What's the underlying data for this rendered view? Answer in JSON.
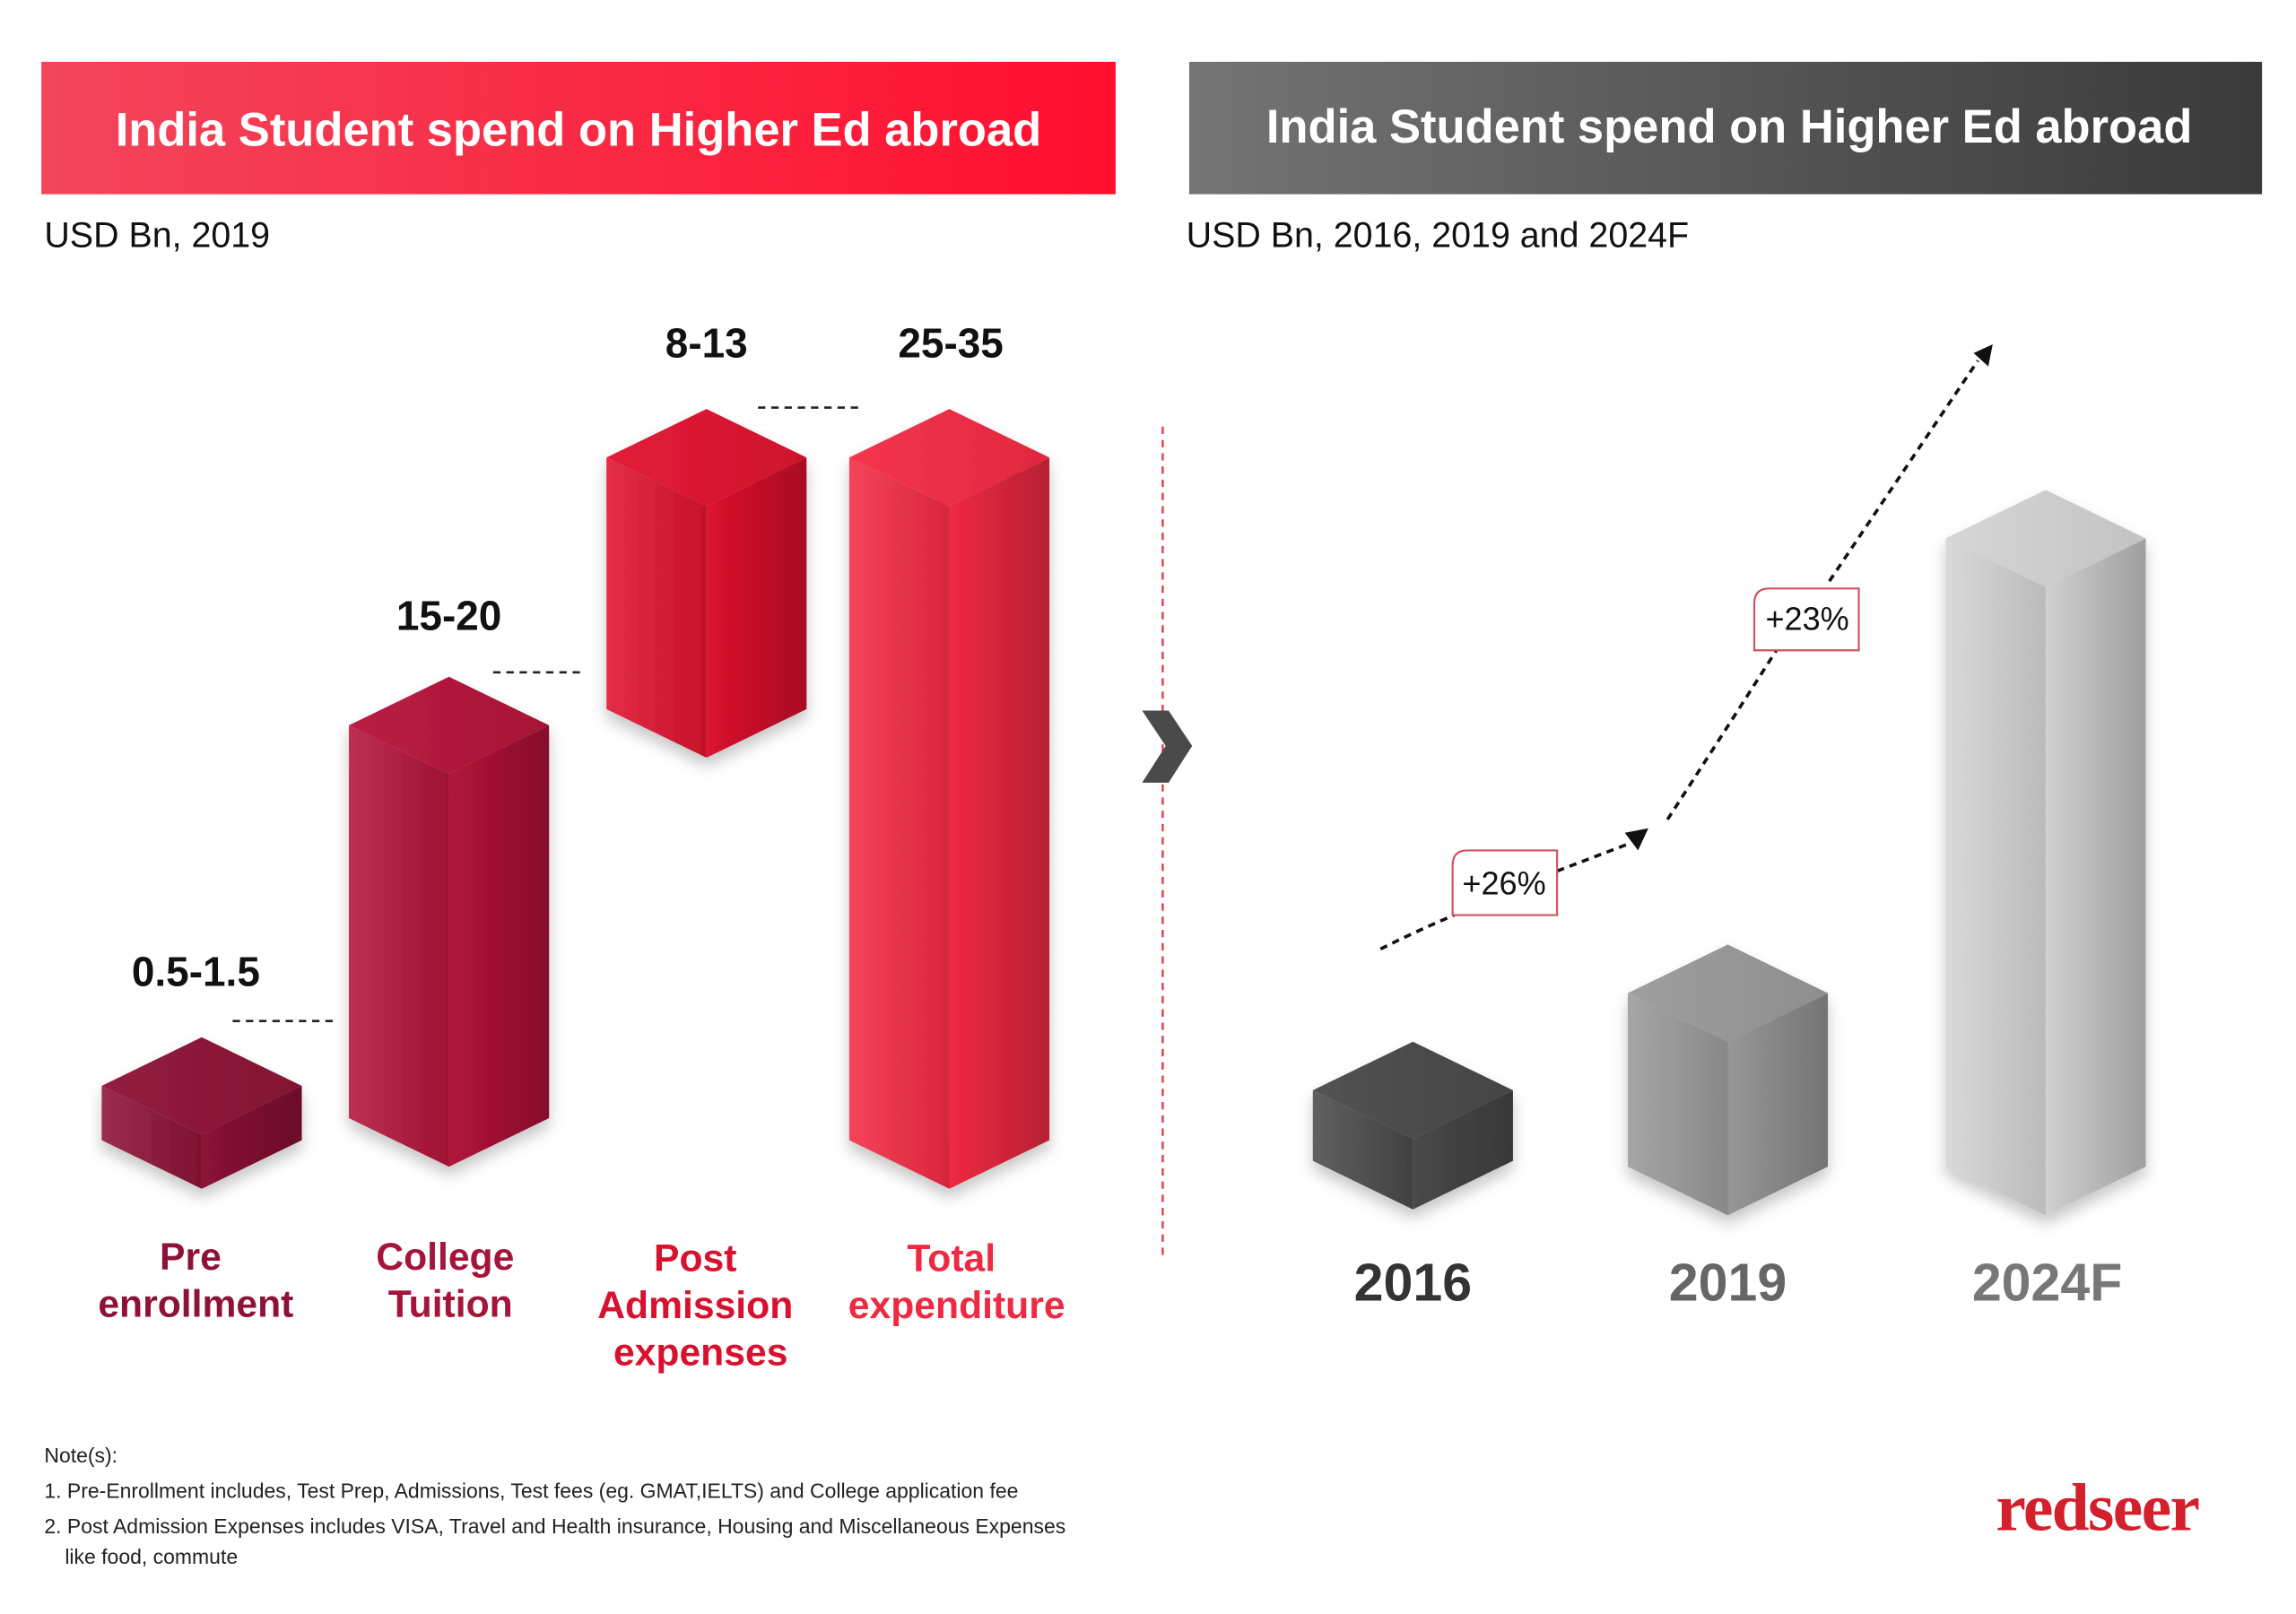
{
  "colors": {
    "left_header": "#f5203d",
    "right_header": "#4d4d4d",
    "pre_enrollment": "#8e1236",
    "college_tuition": "#b5133a",
    "post_admission": "#e0122f",
    "total": "#f42a44",
    "logo": "#d41f2c"
  },
  "left": {
    "title": "India Student spend on Higher Ed abroad",
    "subtitle": "USD Bn, 2019"
  },
  "right": {
    "title": "India Student spend on Higher Ed abroad",
    "subtitle": "USD Bn, 2016, 2019 and 2024F"
  },
  "chart_data": [
    {
      "type": "bar",
      "style": "3d-waterfall",
      "categories": [
        "Pre enrollment",
        "College Tuition",
        "Post Admission expenses",
        "Total expenditure"
      ],
      "category_lines": [
        [
          "Pre",
          "enrollment"
        ],
        [
          "College",
          "Tuition"
        ],
        [
          "Post",
          "Admission",
          "expenses"
        ],
        [
          "Total",
          "expenditure"
        ]
      ],
      "value_labels": [
        "0.5-1.5",
        "15-20",
        "8-13",
        "25-35"
      ],
      "values_range": [
        [
          0.5,
          1.5
        ],
        [
          15,
          20
        ],
        [
          8,
          13
        ],
        [
          25,
          35
        ]
      ],
      "unit": "USD Bn"
    },
    {
      "type": "bar",
      "style": "3d",
      "categories": [
        "2016",
        "2019",
        "2024F"
      ],
      "growth_labels": [
        "+26%",
        "+23%"
      ],
      "trend_arrow": true,
      "unit": "USD Bn"
    }
  ],
  "notes": {
    "heading": "Note(s):",
    "items": [
      "1. Pre-Enrollment includes, Test Prep, Admissions, Test fees (eg. GMAT,IELTS) and College application fee",
      "2. Post Admission Expenses includes VISA, Travel and Health insurance, Housing and Miscellaneous Expenses",
      "like food, commute"
    ]
  },
  "logo": "redseer"
}
